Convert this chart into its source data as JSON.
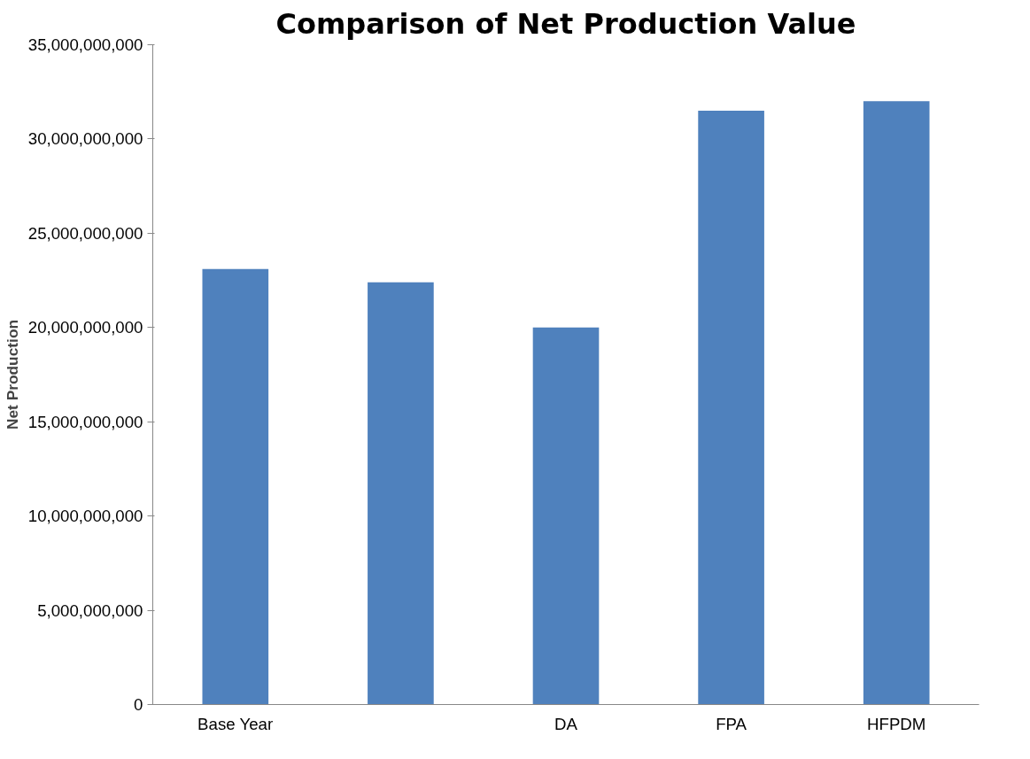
{
  "chart_data": {
    "type": "bar",
    "title": "Comparison of Net Production Value",
    "ylabel": "Net Production",
    "categories": [
      "Base Year",
      null,
      "DA",
      "FPA",
      "HFPDM"
    ],
    "values": [
      23100000000,
      22400000000,
      20000000000,
      31500000000,
      32000000000
    ],
    "color": "#4f81bd",
    "ylim": [
      0,
      35000000000
    ],
    "yticks": [
      {
        "value": 0,
        "label": "0"
      },
      {
        "value": 5000000000,
        "label": "5,000,000,000"
      },
      {
        "value": 10000000000,
        "label": "10,000,000,000"
      },
      {
        "value": 15000000000,
        "label": "15,000,000,000"
      },
      {
        "value": 20000000000,
        "label": "20,000,000,000"
      },
      {
        "value": 25000000000,
        "label": "25,000,000,000"
      },
      {
        "value": 30000000000,
        "label": "30,000,000,000"
      },
      {
        "value": 35000000000,
        "label": "35,000,000,000"
      }
    ],
    "grid": false
  }
}
